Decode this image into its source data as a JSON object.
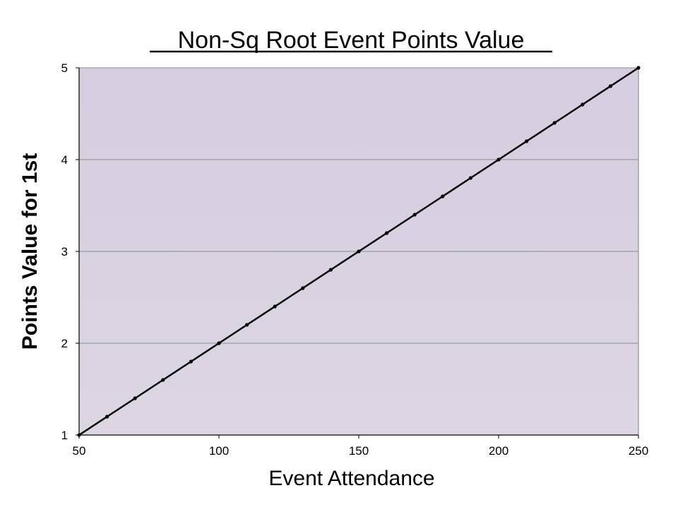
{
  "chart_data": {
    "type": "line",
    "title": "Non-Sq Root Event Points Value",
    "xlabel": "Event Attendance",
    "ylabel": "Points Value for 1st",
    "xlim": [
      50,
      250
    ],
    "ylim": [
      1,
      5
    ],
    "x_ticks": [
      50,
      100,
      150,
      200,
      250
    ],
    "y_ticks": [
      1,
      2,
      3,
      4,
      5
    ],
    "grid": "horizontal",
    "legend": "none",
    "colors": {
      "plot_background": "#d9d2e0",
      "line": "#000000",
      "gridline": "#8c8c8c"
    },
    "series": [
      {
        "x": [
          50,
          60,
          70,
          80,
          90,
          100,
          110,
          120,
          130,
          140,
          150,
          160,
          170,
          180,
          190,
          200,
          210,
          220,
          230,
          240,
          250
        ],
        "y": [
          1.0,
          1.2,
          1.4,
          1.6,
          1.8,
          2.0,
          2.2,
          2.4,
          2.6,
          2.8,
          3.0,
          3.2,
          3.4,
          3.6,
          3.8,
          4.0,
          4.2,
          4.4,
          4.6,
          4.8,
          5.0
        ]
      }
    ]
  }
}
